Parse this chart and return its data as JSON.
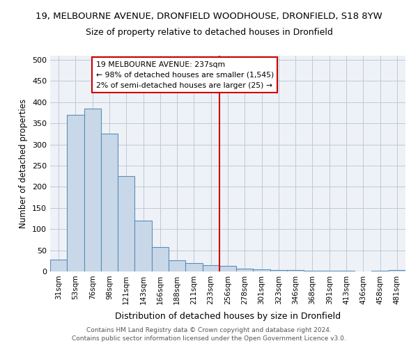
{
  "title_line1": "19, MELBOURNE AVENUE, DRONFIELD WOODHOUSE, DRONFIELD, S18 8YW",
  "title_line2": "Size of property relative to detached houses in Dronfield",
  "xlabel": "Distribution of detached houses by size in Dronfield",
  "ylabel": "Number of detached properties",
  "categories": [
    "31sqm",
    "53sqm",
    "76sqm",
    "98sqm",
    "121sqm",
    "143sqm",
    "166sqm",
    "188sqm",
    "211sqm",
    "233sqm",
    "256sqm",
    "278sqm",
    "301sqm",
    "323sqm",
    "346sqm",
    "368sqm",
    "391sqm",
    "413sqm",
    "436sqm",
    "458sqm",
    "481sqm"
  ],
  "values": [
    28,
    370,
    385,
    325,
    225,
    120,
    58,
    27,
    20,
    15,
    13,
    7,
    5,
    4,
    3,
    1,
    1,
    1,
    0,
    1,
    4
  ],
  "bar_color": "#c8d8e8",
  "bar_edge_color": "#5b8db8",
  "vline_x": 9.5,
  "vline_color": "#cc0000",
  "annotation_text": "19 MELBOURNE AVENUE: 237sqm\n← 98% of detached houses are smaller (1,545)\n2% of semi-detached houses are larger (25) →",
  "annotation_box_color": "#ffffff",
  "annotation_box_edge": "#cc0000",
  "ylim": [
    0,
    510
  ],
  "yticks": [
    0,
    50,
    100,
    150,
    200,
    250,
    300,
    350,
    400,
    450,
    500
  ],
  "footer_line1": "Contains HM Land Registry data © Crown copyright and database right 2024.",
  "footer_line2": "Contains public sector information licensed under the Open Government Licence v3.0.",
  "bg_color": "#eef2f7",
  "grid_color": "#c0c8d8",
  "title1_fontsize": 9.5,
  "title2_fontsize": 9,
  "xlabel_fontsize": 9,
  "ylabel_fontsize": 8.5,
  "tick_fontsize": 8,
  "xtick_fontsize": 7.5,
  "footer_fontsize": 6.5,
  "ann_fontsize": 7.8
}
